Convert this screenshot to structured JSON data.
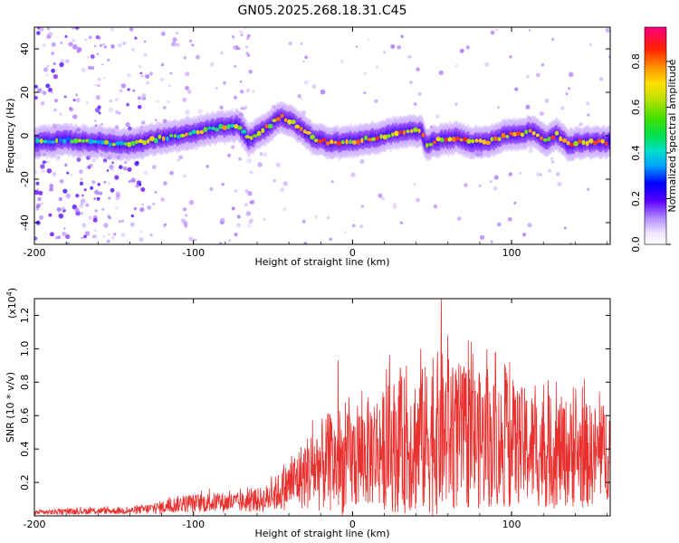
{
  "chart_data": [
    {
      "type": "heatmap",
      "title": "GN05.2025.268.18.31.C45",
      "xlabel": "Height of straight line (km)",
      "ylabel": "Frequency (Hz)",
      "xlim": [
        -200,
        162
      ],
      "ylim": [
        -50,
        50
      ],
      "xticks": [
        -200,
        -100,
        0,
        100
      ],
      "yticks": [
        -40,
        -20,
        0,
        20,
        40
      ],
      "colorbar": {
        "label": "Normalized spectral amplitude",
        "range": [
          0.0,
          0.95
        ],
        "ticks": [
          "0.0",
          "0.2",
          "0.4",
          "0.6",
          "0.8"
        ],
        "tick_values": [
          0.0,
          0.2,
          0.4,
          0.6,
          0.8
        ]
      },
      "ridge": {
        "x": [
          -200,
          -180,
          -160,
          -140,
          -120,
          -100,
          -90,
          -80,
          -72,
          -65,
          -55,
          -45,
          -35,
          -25,
          -15,
          -5,
          5,
          15,
          25,
          35,
          44,
          46,
          55,
          65,
          75,
          85,
          95,
          105,
          115,
          122,
          128,
          135,
          145,
          162
        ],
        "freq": [
          -3,
          -2,
          -3,
          -4,
          -1,
          1,
          3,
          4,
          5,
          -2,
          3,
          9,
          5,
          -1,
          -3,
          -3,
          -2,
          -1,
          1,
          2,
          2,
          -4,
          -2,
          -1,
          -3,
          -3,
          0,
          1,
          2,
          -3,
          1,
          -4,
          -3,
          -3
        ]
      }
    },
    {
      "type": "line",
      "xlabel": "Height of straight line (km)",
      "ylabel": "SNR (10 * v/v)",
      "yscale_label": "(x10",
      "yscale_exp": "4",
      "yscale_close": ")",
      "xlim": [
        -200,
        162
      ],
      "ylim": [
        0,
        1.3
      ],
      "xticks": [
        -200,
        -100,
        0,
        100
      ],
      "yticks": [
        "0.2",
        "0.4",
        "0.6",
        "0.8",
        "1.0",
        "1.2"
      ],
      "ytick_values": [
        0.2,
        0.4,
        0.6,
        0.8,
        1.0,
        1.2
      ],
      "series": [
        {
          "name": "SNR",
          "color": "#e8312f",
          "envelope_x": [
            -200,
            -160,
            -140,
            -120,
            -110,
            -90,
            -70,
            -55,
            -45,
            -35,
            -25,
            -15,
            -5,
            5,
            15,
            25,
            35,
            45,
            55,
            65,
            75,
            85,
            95,
            105,
            115,
            125,
            135,
            145,
            155,
            162
          ],
          "envelope_mean": [
            0.02,
            0.03,
            0.03,
            0.05,
            0.07,
            0.08,
            0.08,
            0.1,
            0.15,
            0.22,
            0.28,
            0.32,
            0.3,
            0.36,
            0.4,
            0.42,
            0.43,
            0.45,
            0.5,
            0.48,
            0.46,
            0.44,
            0.42,
            0.42,
            0.4,
            0.38,
            0.38,
            0.36,
            0.37,
            0.4
          ],
          "envelope_amp": [
            0.015,
            0.02,
            0.02,
            0.04,
            0.05,
            0.06,
            0.06,
            0.08,
            0.12,
            0.18,
            0.25,
            0.3,
            0.3,
            0.32,
            0.35,
            0.4,
            0.42,
            0.45,
            0.5,
            0.45,
            0.42,
            0.4,
            0.38,
            0.36,
            0.35,
            0.34,
            0.33,
            0.32,
            0.3,
            0.3
          ],
          "peaks": [
            [
              -9,
              0.93
            ],
            [
              -2,
              0.71
            ],
            [
              19,
              0.67
            ],
            [
              30,
              0.85
            ],
            [
              34,
              0.9
            ],
            [
              43,
              1.0
            ],
            [
              56,
              1.3
            ],
            [
              60,
              1.08
            ],
            [
              73,
              1.05
            ],
            [
              80,
              0.82
            ],
            [
              85,
              0.88
            ],
            [
              90,
              0.98
            ],
            [
              99,
              0.92
            ],
            [
              115,
              0.78
            ],
            [
              139,
              0.77
            ],
            [
              146,
              0.82
            ]
          ]
        }
      ]
    }
  ]
}
